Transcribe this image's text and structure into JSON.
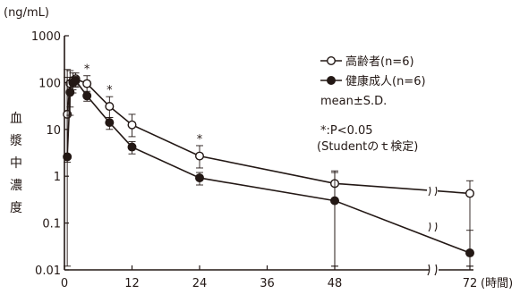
{
  "chart_data": {
    "type": "line",
    "yscale": "log",
    "ylim": [
      0.01,
      1000
    ],
    "xlim": [
      0,
      72
    ],
    "y_unit": "(ng/mL)",
    "ylabel": "血漿中濃度",
    "x_unit": "(時間)",
    "xticks": [
      0,
      12,
      24,
      36,
      48,
      72
    ],
    "xtick_labels": [
      "0",
      "12",
      "24",
      "36",
      "48",
      "72"
    ],
    "yticks": [
      1000,
      100,
      10,
      1,
      0.1,
      0.01
    ],
    "ytick_labels": [
      "1000",
      "100",
      "10",
      "1",
      "0.1",
      "0.01"
    ],
    "axis_break": "between 48 and 72",
    "series": [
      {
        "name": "高齢者(n=6)",
        "marker": "open-circle",
        "x": [
          0.5,
          1,
          1.5,
          2,
          4,
          8,
          12,
          24,
          48,
          72
        ],
        "y": [
          21,
          95,
          110,
          120,
          95,
          31,
          12.5,
          2.7,
          0.7,
          0.43
        ],
        "y_low": [
          2,
          30,
          60,
          80,
          60,
          18,
          7,
          1.5,
          0.012,
          0.012
        ],
        "y_high": [
          190,
          180,
          160,
          160,
          140,
          50,
          21,
          4.5,
          1.3,
          0.8
        ]
      },
      {
        "name": "健康成人(n=6)",
        "marker": "filled-circle",
        "x": [
          0.5,
          1,
          1.5,
          2,
          4,
          8,
          12,
          24,
          48,
          72
        ],
        "y": [
          2.6,
          62,
          100,
          110,
          52,
          14,
          4.2,
          0.92,
          0.3,
          0.023
        ],
        "y_low": [
          0.012,
          20,
          70,
          85,
          40,
          10,
          3,
          0.65,
          0.012,
          0.012
        ],
        "y_high": [
          130,
          110,
          130,
          135,
          65,
          18,
          5.5,
          1.2,
          1.2,
          0.07
        ]
      }
    ],
    "significance_marks": [
      {
        "x": 4,
        "label": "*"
      },
      {
        "x": 8,
        "label": "*"
      },
      {
        "x": 24,
        "label": "*"
      }
    ],
    "legend_position": "top-right",
    "legend_note": "mean±S.D.",
    "significance_note": "*:P<0.05",
    "significance_test": "(Studentのｔ検定)",
    "grid": false
  },
  "colors": {
    "ink": "#231815",
    "background": "#ffffff"
  }
}
